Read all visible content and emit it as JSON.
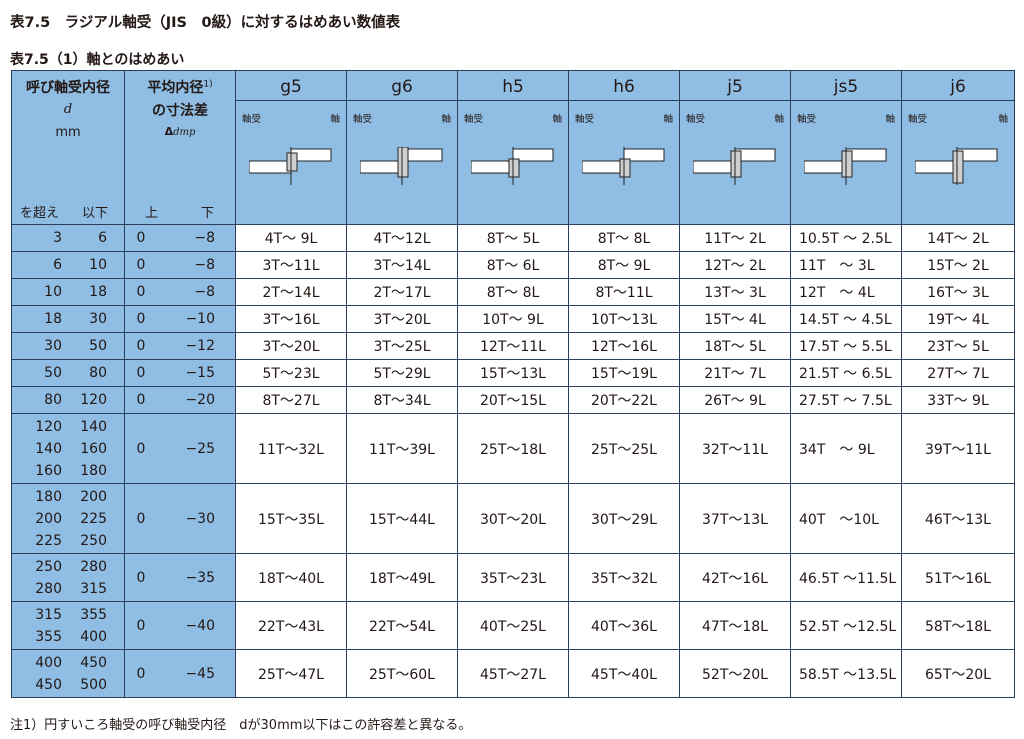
{
  "title": "表7.5　ラジアル軸受（JIS　0級）に対するはめあい数値表",
  "subtitle": "表7.5（1）軸とのはめあい",
  "note": "注1）円すいころ軸受の呼び軸受内径　dが30mm以下はこの許容差と異なる。",
  "header": {
    "bore_title": "呼び軸受内径",
    "bore_symbol": "d",
    "bore_unit": "mm",
    "over": "を超え",
    "incl": "以下",
    "tol_title_1": "平均内径",
    "tol_note": "1)",
    "tol_title_2": "の寸法差",
    "tol_symbol": "Δ",
    "tol_symbol_sub": "dmp",
    "upper": "上",
    "lower": "下",
    "bearing_label": "軸受",
    "shaft_label": "軸"
  },
  "classes": [
    "g5",
    "g6",
    "h5",
    "h6",
    "j5",
    "js5",
    "j6"
  ],
  "rows": [
    {
      "d": [
        [
          "3",
          "6"
        ]
      ],
      "up": "0",
      "low": "−8",
      "v": [
        "4T～ 9L",
        "4T～12L",
        "8T～ 5L",
        "8T～ 8L",
        "11T～ 2L",
        "10.5T ～ 2.5L",
        "14T～ 2L"
      ]
    },
    {
      "d": [
        [
          "6",
          "10"
        ]
      ],
      "up": "0",
      "low": "−8",
      "v": [
        "3T～11L",
        "3T～14L",
        "8T～ 6L",
        "8T～ 9L",
        "12T～ 2L",
        "11T　～ 3L",
        "15T～ 2L"
      ]
    },
    {
      "d": [
        [
          "10",
          "18"
        ]
      ],
      "up": "0",
      "low": "−8",
      "v": [
        "2T～14L",
        "2T～17L",
        "8T～ 8L",
        "8T～11L",
        "13T～ 3L",
        "12T　～ 4L",
        "16T～ 3L"
      ]
    },
    {
      "d": [
        [
          "18",
          "30"
        ]
      ],
      "up": "0",
      "low": "−10",
      "v": [
        "3T～16L",
        "3T～20L",
        "10T～ 9L",
        "10T～13L",
        "15T～ 4L",
        "14.5T ～ 4.5L",
        "19T～ 4L"
      ]
    },
    {
      "d": [
        [
          "30",
          "50"
        ]
      ],
      "up": "0",
      "low": "−12",
      "v": [
        "3T～20L",
        "3T～25L",
        "12T～11L",
        "12T～16L",
        "18T～ 5L",
        "17.5T ～ 5.5L",
        "23T～ 5L"
      ]
    },
    {
      "d": [
        [
          "50",
          "80"
        ]
      ],
      "up": "0",
      "low": "−15",
      "v": [
        "5T～23L",
        "5T～29L",
        "15T～13L",
        "15T～19L",
        "21T～ 7L",
        "21.5T ～ 6.5L",
        "27T～ 7L"
      ]
    },
    {
      "d": [
        [
          "80",
          "120"
        ]
      ],
      "up": "0",
      "low": "−20",
      "v": [
        "8T～27L",
        "8T～34L",
        "20T～15L",
        "20T～22L",
        "26T～ 9L",
        "27.5T ～ 7.5L",
        "33T～ 9L"
      ]
    },
    {
      "d": [
        [
          "120",
          "140"
        ],
        [
          "140",
          "160"
        ],
        [
          "160",
          "180"
        ]
      ],
      "up": "0",
      "low": "−25",
      "v": [
        "11T～32L",
        "11T～39L",
        "25T～18L",
        "25T～25L",
        "32T～11L",
        "34T　～ 9L",
        "39T～11L"
      ]
    },
    {
      "d": [
        [
          "180",
          "200"
        ],
        [
          "200",
          "225"
        ],
        [
          "225",
          "250"
        ]
      ],
      "up": "0",
      "low": "−30",
      "v": [
        "15T～35L",
        "15T～44L",
        "30T～20L",
        "30T～29L",
        "37T～13L",
        "40T　～10L",
        "46T～13L"
      ]
    },
    {
      "d": [
        [
          "250",
          "280"
        ],
        [
          "280",
          "315"
        ]
      ],
      "up": "0",
      "low": "−35",
      "v": [
        "18T～40L",
        "18T～49L",
        "35T～23L",
        "35T～32L",
        "42T～16L",
        "46.5T ～11.5L",
        "51T～16L"
      ]
    },
    {
      "d": [
        [
          "315",
          "355"
        ],
        [
          "355",
          "400"
        ]
      ],
      "up": "0",
      "low": "−40",
      "v": [
        "22T～43L",
        "22T～54L",
        "40T～25L",
        "40T～36L",
        "47T～18L",
        "52.5T ～12.5L",
        "58T～18L"
      ]
    },
    {
      "d": [
        [
          "400",
          "450"
        ],
        [
          "450",
          "500"
        ]
      ],
      "up": "0",
      "low": "−45",
      "v": [
        "25T～47L",
        "25T～60L",
        "45T～27L",
        "45T～40L",
        "52T～20L",
        "58.5T ～13.5L",
        "65T～20L"
      ]
    }
  ],
  "colors": {
    "header_bg": "#8fbde3",
    "border": "#2a3f5a",
    "shaft_fill": "#cfcfcf"
  }
}
